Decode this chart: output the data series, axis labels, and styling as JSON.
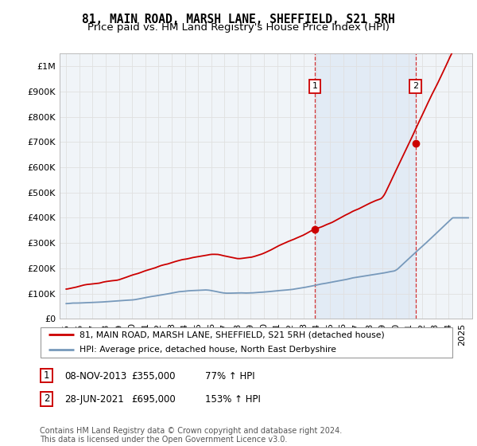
{
  "title": "81, MAIN ROAD, MARSH LANE, SHEFFIELD, S21 5RH",
  "subtitle": "Price paid vs. HM Land Registry's House Price Index (HPI)",
  "ylabel_ticks": [
    "£0",
    "£100K",
    "£200K",
    "£300K",
    "£400K",
    "£500K",
    "£600K",
    "£700K",
    "£800K",
    "£900K",
    "£1M"
  ],
  "ytick_values": [
    0,
    100000,
    200000,
    300000,
    400000,
    500000,
    600000,
    700000,
    800000,
    900000,
    1000000
  ],
  "ylim": [
    0,
    1050000
  ],
  "xlim_start": 1994.5,
  "xlim_end": 2025.8,
  "sale1_date": 2013.86,
  "sale1_price": 355000,
  "sale1_label": "1",
  "sale2_date": 2021.49,
  "sale2_price": 695000,
  "sale2_label": "2",
  "line1_color": "#cc0000",
  "line2_color": "#7799bb",
  "shade_color": "#dde8f5",
  "legend_line1": "81, MAIN ROAD, MARSH LANE, SHEFFIELD, S21 5RH (detached house)",
  "legend_line2": "HPI: Average price, detached house, North East Derbyshire",
  "table_row1": [
    "1",
    "08-NOV-2013",
    "£355,000",
    "77% ↑ HPI"
  ],
  "table_row2": [
    "2",
    "28-JUN-2021",
    "£695,000",
    "153% ↑ HPI"
  ],
  "footnote": "Contains HM Land Registry data © Crown copyright and database right 2024.\nThis data is licensed under the Open Government Licence v3.0.",
  "background_color": "#ffffff",
  "grid_color": "#e0e0e0",
  "chart_bg": "#f0f4f8",
  "title_fontsize": 10.5,
  "subtitle_fontsize": 9.5,
  "tick_fontsize": 8
}
